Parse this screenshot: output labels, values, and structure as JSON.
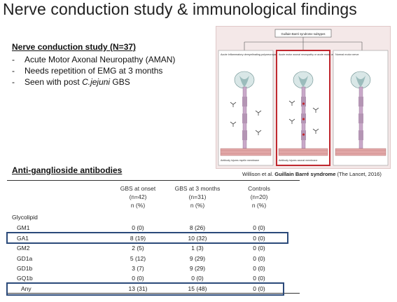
{
  "slide": {
    "title": "Nerve conduction study & immunological findings"
  },
  "ncs": {
    "heading": "Nerve conduction study (N=37)",
    "bullet1": "Acute Motor Axonal Neuropathy (AMAN)",
    "bullet2": "Needs repetition of EMG at 3 months",
    "bullet3_prefix": "Seen with post ",
    "bullet3_italic": "C.jejuni",
    "bullet3_suffix": " GBS"
  },
  "figure": {
    "top_label": "Guillain-Barré syndrome subtypes",
    "panel1": "Acute inflammatory demyelinating polyneuropathy (demyelinating)",
    "panel2": "Acute motor axonal neuropathy or acute motor and sensory axonal neuropathy (axonal)",
    "panel3": "Normal motor nerve",
    "note1": "Antibody injures myelin membrane",
    "note2": "Antibody injures axonal membrane",
    "caption_prefix": "Willison et al. ",
    "caption_bold": "Guillain Barré syndrome",
    "caption_suffix": " (The Lancet, 2016)"
  },
  "table": {
    "heading": "Anti-ganglioside antibodies",
    "columns": [
      {
        "name": "GBS at onset",
        "n": "(n=42)",
        "unit": "n (%)"
      },
      {
        "name": "GBS at 3 months",
        "n": "(n=31)",
        "unit": "n (%)"
      },
      {
        "name": "Controls",
        "n": "(n=20)",
        "unit": "n (%)"
      }
    ],
    "group_label": "Glycolipid",
    "rows": [
      {
        "label": "GM1",
        "v": [
          "0 (0)",
          "8 (26)",
          "0 (0)"
        ]
      },
      {
        "label": "GA1",
        "v": [
          "8 (19)",
          "10 (32)",
          "0 (0)"
        ]
      },
      {
        "label": "GM2",
        "v": [
          "2 (5)",
          "1  (3)",
          "0 (0)"
        ]
      },
      {
        "label": "GD1a",
        "v": [
          "5 (12)",
          "9 (29)",
          "0 (0)"
        ]
      },
      {
        "label": "GD1b",
        "v": [
          "3 (7)",
          "9 (29)",
          "0 (0)"
        ]
      },
      {
        "label": "GQ1b",
        "v": [
          "0 (0)",
          "0  (0)",
          "0 (0)"
        ]
      },
      {
        "label": "Any",
        "v": [
          "13 (31)",
          "15 (48)",
          "0 (0)"
        ]
      }
    ]
  },
  "colors": {
    "highlight": "#2b4a7a",
    "figure_bg": "#f4e8e8",
    "highlight_panel": "#c0282f"
  }
}
